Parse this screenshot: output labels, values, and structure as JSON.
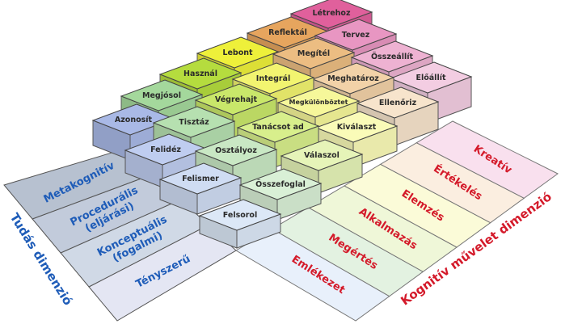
{
  "knowledge_dimension": {
    "title": "Tudás dimenzió",
    "levels": [
      "Tényszerű",
      "Konceptuális (fogalmi)",
      "Procedurális (eljárási)",
      "Metakognitív"
    ]
  },
  "cognitive_dimension": {
    "title": "Kognitív művelet dimenzió",
    "levels": [
      "Emlékezet",
      "Megértés",
      "Alkalmazás",
      "Elemzés",
      "Értékelés",
      "Kreatív"
    ]
  },
  "cells": [
    [
      "Felsorol",
      "Összefoglal",
      "Válaszol",
      "Kiválaszt",
      "Ellenőriz",
      "Előállít"
    ],
    [
      "Felismer",
      "Osztályoz",
      "Tanácsot ad",
      "Megkülönböztet",
      "Meghatároz",
      "Összeállít"
    ],
    [
      "Felidéz",
      "Tisztáz",
      "Végrehajt",
      "Integrál",
      "Megítél",
      "Tervez"
    ],
    [
      "Azonosít",
      "Megjósol",
      "Használ",
      "Lebont",
      "Reflektál",
      "Létrehoz"
    ]
  ],
  "colors": {
    "knowledge_text": "#1e5cb8",
    "cognitive_text": "#d41a2a",
    "columns": [
      [
        "#dce8f7",
        "#cfdcf3",
        "#bfcdf0",
        "#a9b9e6"
      ],
      [
        "#d9f0d6",
        "#c9e8c4",
        "#b6e0b0",
        "#a4d89c"
      ],
      [
        "#e6f4b8",
        "#d8ef8c",
        "#c9e76a",
        "#b5dc3e"
      ],
      [
        "#fafbb8",
        "#f6f79a",
        "#f2f470",
        "#eef03a"
      ],
      [
        "#f7e4cc",
        "#f2d2a8",
        "#ecbd82",
        "#e6a55e"
      ],
      [
        "#f3cde2",
        "#eeb2d2",
        "#e896c2",
        "#e0609c"
      ]
    ],
    "knowledge_panel": [
      "#e4e6f3",
      "#d0d9e6",
      "#c2cbdb",
      "#b7c1d0"
    ],
    "cognitive_panel": [
      "#e8f0fb",
      "#e3f2e1",
      "#eff7d8",
      "#fbfbd8",
      "#fbeee0",
      "#f9e0ee"
    ]
  }
}
